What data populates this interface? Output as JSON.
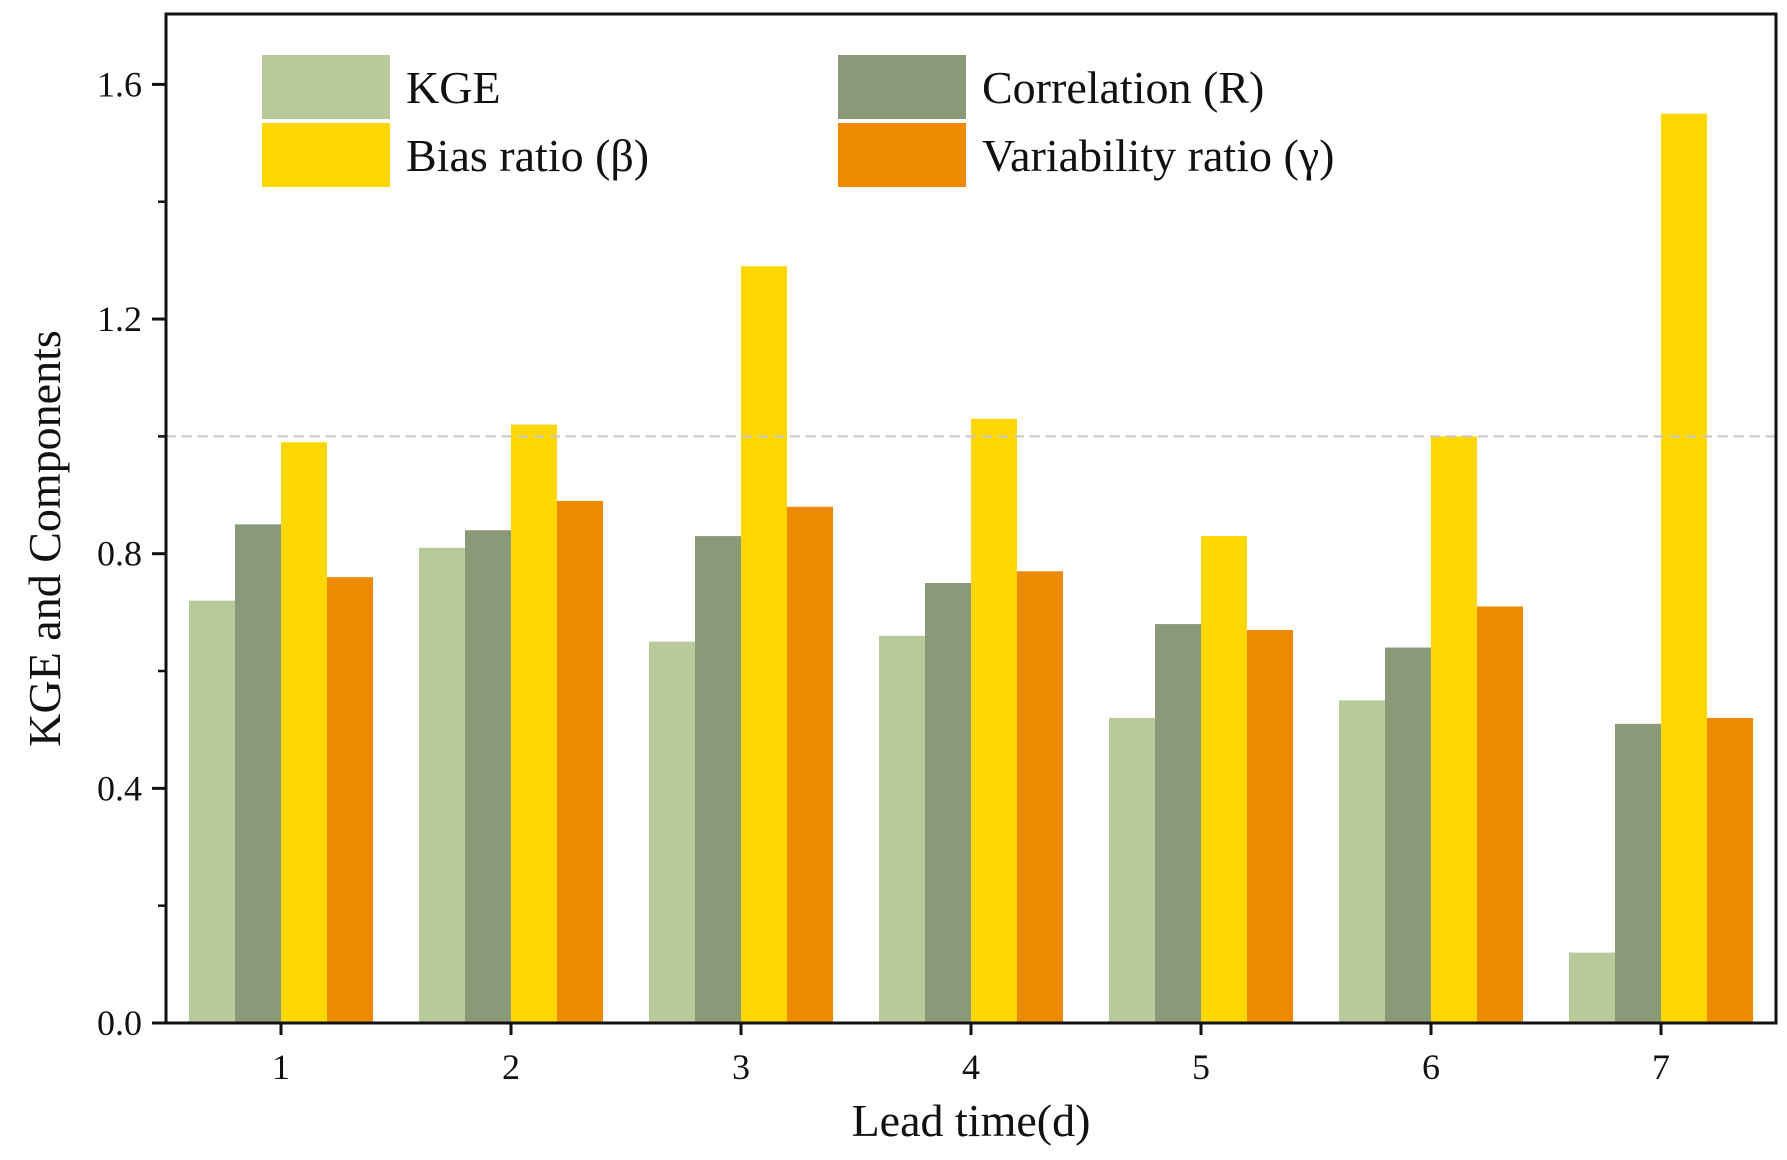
{
  "chart_data": {
    "type": "bar",
    "title": "",
    "xlabel": "Lead  time(d)",
    "ylabel": "KGE and Components",
    "categories": [
      "1",
      "2",
      "3",
      "4",
      "5",
      "6",
      "7"
    ],
    "ylim": [
      0,
      1.72
    ],
    "yticks": [
      "0.0",
      "0.4",
      "0.8",
      "1.2",
      "1.6"
    ],
    "ytick_values": [
      0,
      0.4,
      0.8,
      1.2,
      1.6
    ],
    "reference_line": 1.0,
    "grid": false,
    "legend_position": "top",
    "series": [
      {
        "name": "KGE",
        "color": "#b9ca9a",
        "values": [
          0.72,
          0.81,
          0.65,
          0.66,
          0.52,
          0.55,
          0.12
        ]
      },
      {
        "name": "Correlation (R)",
        "color": "#8a9a78",
        "values": [
          0.85,
          0.84,
          0.83,
          0.75,
          0.68,
          0.64,
          0.51
        ]
      },
      {
        "name": "Bias ratio (β)",
        "color": "#ffd700",
        "values": [
          0.99,
          1.02,
          1.29,
          1.03,
          0.83,
          1.0,
          1.55
        ]
      },
      {
        "name": "Variability ratio (γ)",
        "color": "#ed8a00",
        "values": [
          0.76,
          0.89,
          0.88,
          0.77,
          0.67,
          0.71,
          0.52
        ]
      }
    ]
  }
}
